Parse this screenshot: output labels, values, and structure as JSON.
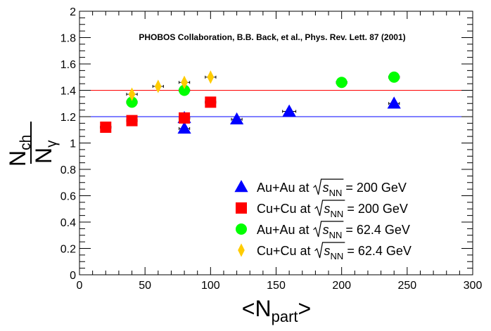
{
  "chart_data": {
    "type": "scatter",
    "title": "",
    "annotation": "PHOBOS Collaboration, B.B. Back, et al., Phys. Rev. Lett. 87 (2001)",
    "xlabel": {
      "open": "<N",
      "sub": "part",
      "close": ">"
    },
    "ylabel": {
      "top": "N",
      "top_sub": "ch",
      "bottom": "N",
      "bottom_sub": "γ"
    },
    "xlim": [
      0,
      300
    ],
    "ylim": [
      0,
      2
    ],
    "xticks": [
      "0",
      "50",
      "100",
      "150",
      "200",
      "250",
      "300"
    ],
    "yticks": [
      "0",
      "0.2",
      "0.4",
      "0.6",
      "0.8",
      "1",
      "1.2",
      "1.4",
      "1.6",
      "1.8",
      "2"
    ],
    "reference_lines": [
      {
        "y": 1.2,
        "color": "#0000ff"
      },
      {
        "y": 1.4,
        "color": "#ff0000"
      }
    ],
    "series": [
      {
        "name": "Au+Au 200",
        "label_pre": "Au+Au at",
        "label_post": "= 200 GeV",
        "marker": "triangle",
        "color": "#0000ff",
        "x": [
          80,
          80,
          120,
          160,
          240
        ],
        "y": [
          1.11,
          1.19,
          1.18,
          1.24,
          1.3
        ],
        "xerr": [
          3,
          3,
          3,
          4,
          3
        ]
      },
      {
        "name": "Cu+Cu 200",
        "label_pre": "Cu+Cu at",
        "label_post": "= 200 GeV",
        "marker": "square",
        "color": "#ff0000",
        "x": [
          20,
          40,
          80,
          100
        ],
        "y": [
          1.12,
          1.17,
          1.19,
          1.31
        ],
        "xerr": [
          3,
          3,
          3,
          3
        ]
      },
      {
        "name": "Au+Au 62.4",
        "label_pre": "Au+Au at",
        "label_post": "= 62.4 GeV",
        "marker": "circle",
        "color": "#00ff00",
        "x": [
          40,
          80,
          200,
          240
        ],
        "y": [
          1.31,
          1.4,
          1.46,
          1.5
        ],
        "xerr": [
          3,
          3,
          3,
          3
        ]
      },
      {
        "name": "Cu+Cu 62.4",
        "label_pre": "Cu+Cu at",
        "label_post": "= 62.4 GeV",
        "marker": "diamond",
        "color": "#ffcc00",
        "x": [
          40,
          60,
          80,
          100
        ],
        "y": [
          1.37,
          1.43,
          1.46,
          1.5
        ],
        "xerr": [
          3,
          3,
          3,
          3
        ]
      }
    ],
    "sqrt_label": {
      "var": "s",
      "sub": "NN"
    }
  }
}
